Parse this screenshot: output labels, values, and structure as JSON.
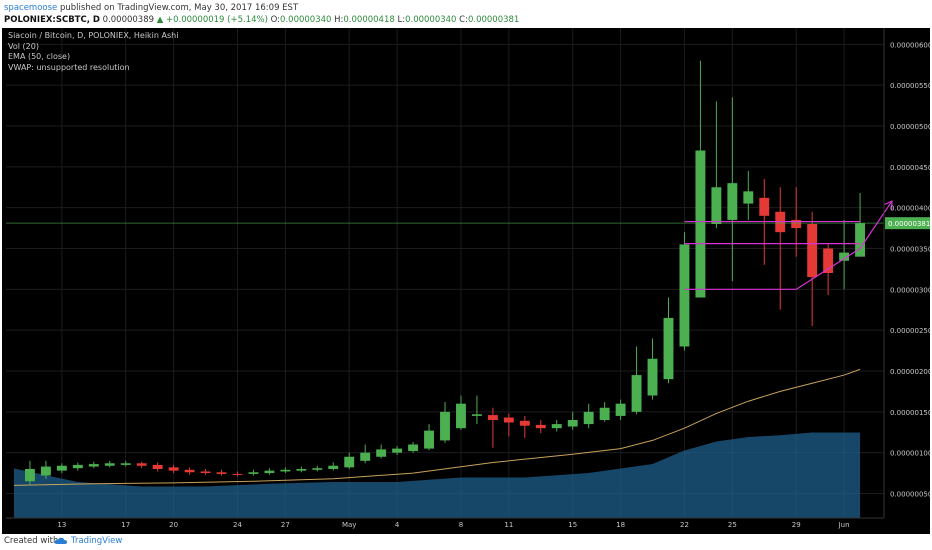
{
  "header": {
    "author": "spacemoose",
    "published": "published on TradingView.com, May 30, 2017 16:09 EST",
    "symbol": "POLONIEX:SCBTC, D",
    "last": "0.00000389",
    "change": "▲ +0.00000019 (+5.14%)",
    "o_label": "O:",
    "o_value": "0.00000340",
    "h_label": "H:",
    "h_value": "0.00000418",
    "l_label": "L:",
    "l_value": "0.00000340",
    "c_label": "C:",
    "c_value": "0.00000381"
  },
  "legend": {
    "title": "Siacoin / Bitcoin, D, POLONIEX, Heikin Ashi",
    "vol": "Vol (20)",
    "ema": "EMA (50, close)",
    "vwap": "VWAP: unsupported resolution"
  },
  "footer": {
    "created_with": "Created with",
    "brand": "TradingView"
  },
  "colors": {
    "bull": "#4caf50",
    "bear": "#e53935",
    "ema": "#c8a25a",
    "volume": "#1e5f8c",
    "annotation": "#d633d6",
    "price_tag": "#4caf50"
  },
  "chart_data": {
    "type": "candlestick",
    "title": "Siacoin / Bitcoin, D, POLONIEX, Heikin Ashi",
    "price_label": "0.00000381",
    "ylim": [
      2e-07,
      6.2e-06
    ],
    "y_ticks": [
      "0.00000600",
      "0.00000550",
      "0.00000500",
      "0.00000450",
      "0.00000400",
      "0.00000350",
      "0.00000300",
      "0.00000250",
      "0.00000200",
      "0.00000150",
      "0.00000100",
      "0.00000050"
    ],
    "x_ticks": [
      {
        "label": "13",
        "x": 13
      },
      {
        "label": "17",
        "x": 17
      },
      {
        "label": "20",
        "x": 20
      },
      {
        "label": "24",
        "x": 24
      },
      {
        "label": "27",
        "x": 27
      },
      {
        "label": "May",
        "x": 31
      },
      {
        "label": "4",
        "x": 34
      },
      {
        "label": "8",
        "x": 38
      },
      {
        "label": "11",
        "x": 41
      },
      {
        "label": "15",
        "x": 45
      },
      {
        "label": "18",
        "x": 48
      },
      {
        "label": "22",
        "x": 52
      },
      {
        "label": "25",
        "x": 55
      },
      {
        "label": "29",
        "x": 59
      },
      {
        "label": "Jun",
        "x": 62
      }
    ],
    "candles": [
      {
        "x": 11,
        "o": 6.5e-07,
        "c": 8e-07,
        "h": 9e-07,
        "l": 6e-07
      },
      {
        "x": 12,
        "o": 7.2e-07,
        "c": 8.3e-07,
        "h": 9e-07,
        "l": 6.8e-07
      },
      {
        "x": 13,
        "o": 7.8e-07,
        "c": 8.4e-07,
        "h": 8.7e-07,
        "l": 7.5e-07
      },
      {
        "x": 14,
        "o": 8.1e-07,
        "c": 8.5e-07,
        "h": 8.8e-07,
        "l": 7.8e-07
      },
      {
        "x": 15,
        "o": 8.3e-07,
        "c": 8.6e-07,
        "h": 8.9e-07,
        "l": 8.1e-07
      },
      {
        "x": 16,
        "o": 8.4e-07,
        "c": 8.7e-07,
        "h": 9e-07,
        "l": 8.2e-07
      },
      {
        "x": 17,
        "o": 8.5e-07,
        "c": 8.7e-07,
        "h": 9e-07,
        "l": 8.3e-07
      },
      {
        "x": 18,
        "o": 8.7e-07,
        "c": 8.4e-07,
        "h": 8.9e-07,
        "l": 8.1e-07
      },
      {
        "x": 19,
        "o": 8.5e-07,
        "c": 8e-07,
        "h": 8.8e-07,
        "l": 7.7e-07
      },
      {
        "x": 20,
        "o": 8.2e-07,
        "c": 7.8e-07,
        "h": 8.5e-07,
        "l": 7.5e-07
      },
      {
        "x": 21,
        "o": 7.9e-07,
        "c": 7.6e-07,
        "h": 8.2e-07,
        "l": 7.3e-07
      },
      {
        "x": 22,
        "o": 7.7e-07,
        "c": 7.5e-07,
        "h": 8e-07,
        "l": 7.3e-07
      },
      {
        "x": 23,
        "o": 7.6e-07,
        "c": 7.4e-07,
        "h": 7.9e-07,
        "l": 7.2e-07
      },
      {
        "x": 24,
        "o": 7.4e-07,
        "c": 7.3e-07,
        "h": 7.7e-07,
        "l": 7.1e-07
      },
      {
        "x": 25,
        "o": 7.4e-07,
        "c": 7.6e-07,
        "h": 7.9e-07,
        "l": 7.2e-07
      },
      {
        "x": 26,
        "o": 7.5e-07,
        "c": 7.8e-07,
        "h": 8.1e-07,
        "l": 7.3e-07
      },
      {
        "x": 27,
        "o": 7.7e-07,
        "c": 7.9e-07,
        "h": 8.2e-07,
        "l": 7.5e-07
      },
      {
        "x": 28,
        "o": 7.8e-07,
        "c": 8e-07,
        "h": 8.3e-07,
        "l": 7.6e-07
      },
      {
        "x": 29,
        "o": 7.9e-07,
        "c": 8.1e-07,
        "h": 8.4e-07,
        "l": 7.7e-07
      },
      {
        "x": 30,
        "o": 8e-07,
        "c": 8.4e-07,
        "h": 8.8e-07,
        "l": 7.8e-07
      },
      {
        "x": 31,
        "o": 8.2e-07,
        "c": 9.5e-07,
        "h": 1e-06,
        "l": 8e-07
      },
      {
        "x": 32,
        "o": 9e-07,
        "c": 1e-06,
        "h": 1.1e-06,
        "l": 8.7e-07
      },
      {
        "x": 33,
        "o": 9.5e-07,
        "c": 1.04e-06,
        "h": 1.1e-06,
        "l": 9.3e-07
      },
      {
        "x": 34,
        "o": 1e-06,
        "c": 1.05e-06,
        "h": 1.08e-06,
        "l": 9.7e-07
      },
      {
        "x": 35,
        "o": 1.02e-06,
        "c": 1.1e-06,
        "h": 1.13e-06,
        "l": 1e-06
      },
      {
        "x": 36,
        "o": 1.05e-06,
        "c": 1.27e-06,
        "h": 1.35e-06,
        "l": 1.03e-06
      },
      {
        "x": 37,
        "o": 1.15e-06,
        "c": 1.5e-06,
        "h": 1.62e-06,
        "l": 1.12e-06
      },
      {
        "x": 38,
        "o": 1.3e-06,
        "c": 1.6e-06,
        "h": 1.7e-06,
        "l": 1.28e-06
      },
      {
        "x": 39,
        "o": 1.45e-06,
        "c": 1.47e-06,
        "h": 1.7e-06,
        "l": 1.35e-06
      },
      {
        "x": 40,
        "o": 1.46e-06,
        "c": 1.4e-06,
        "h": 1.55e-06,
        "l": 1.06e-06
      },
      {
        "x": 41,
        "o": 1.43e-06,
        "c": 1.37e-06,
        "h": 1.48e-06,
        "l": 1.2e-06
      },
      {
        "x": 42,
        "o": 1.39e-06,
        "c": 1.33e-06,
        "h": 1.45e-06,
        "l": 1.18e-06
      },
      {
        "x": 43,
        "o": 1.34e-06,
        "c": 1.3e-06,
        "h": 1.4e-06,
        "l": 1.24e-06
      },
      {
        "x": 44,
        "o": 1.3e-06,
        "c": 1.35e-06,
        "h": 1.4e-06,
        "l": 1.26e-06
      },
      {
        "x": 45,
        "o": 1.32e-06,
        "c": 1.4e-06,
        "h": 1.5e-06,
        "l": 1.28e-06
      },
      {
        "x": 46,
        "o": 1.35e-06,
        "c": 1.5e-06,
        "h": 1.6e-06,
        "l": 1.3e-06
      },
      {
        "x": 47,
        "o": 1.4e-06,
        "c": 1.55e-06,
        "h": 1.62e-06,
        "l": 1.38e-06
      },
      {
        "x": 48,
        "o": 1.45e-06,
        "c": 1.6e-06,
        "h": 1.65e-06,
        "l": 1.4e-06
      },
      {
        "x": 49,
        "o": 1.5e-06,
        "c": 1.95e-06,
        "h": 2.3e-06,
        "l": 1.47e-06
      },
      {
        "x": 50,
        "o": 1.7e-06,
        "c": 2.15e-06,
        "h": 2.4e-06,
        "l": 1.65e-06
      },
      {
        "x": 51,
        "o": 1.9e-06,
        "c": 2.65e-06,
        "h": 2.9e-06,
        "l": 1.85e-06
      },
      {
        "x": 52,
        "o": 2.3e-06,
        "c": 3.55e-06,
        "h": 3.7e-06,
        "l": 2.25e-06
      },
      {
        "x": 53,
        "o": 2.9e-06,
        "c": 4.7e-06,
        "h": 5.8e-06,
        "l": 2.9e-06
      },
      {
        "x": 54,
        "o": 3.8e-06,
        "c": 4.25e-06,
        "h": 5.3e-06,
        "l": 3.75e-06
      },
      {
        "x": 55,
        "o": 3.85e-06,
        "c": 4.3e-06,
        "h": 5.35e-06,
        "l": 3.1e-06
      },
      {
        "x": 56,
        "o": 4.05e-06,
        "c": 4.2e-06,
        "h": 4.45e-06,
        "l": 3.85e-06
      },
      {
        "x": 57,
        "o": 4.12e-06,
        "c": 3.9e-06,
        "h": 4.35e-06,
        "l": 3.3e-06
      },
      {
        "x": 58,
        "o": 3.95e-06,
        "c": 3.7e-06,
        "h": 4.25e-06,
        "l": 2.75e-06
      },
      {
        "x": 59,
        "o": 3.85e-06,
        "c": 3.75e-06,
        "h": 4.25e-06,
        "l": 3.4e-06
      },
      {
        "x": 60,
        "o": 3.8e-06,
        "c": 3.15e-06,
        "h": 3.95e-06,
        "l": 2.55e-06
      },
      {
        "x": 61,
        "o": 3.5e-06,
        "c": 3.2e-06,
        "h": 3.55e-06,
        "l": 2.93e-06
      },
      {
        "x": 62,
        "o": 3.35e-06,
        "c": 3.45e-06,
        "h": 3.85e-06,
        "l": 3e-06
      },
      {
        "x": 63,
        "o": 3.4e-06,
        "c": 3.81e-06,
        "h": 4.18e-06,
        "l": 3.4e-06
      }
    ],
    "ema": [
      {
        "x": 10,
        "y": 6e-07
      },
      {
        "x": 15,
        "y": 6.2e-07
      },
      {
        "x": 20,
        "y": 6.3e-07
      },
      {
        "x": 25,
        "y": 6.5e-07
      },
      {
        "x": 30,
        "y": 6.8e-07
      },
      {
        "x": 35,
        "y": 7.5e-07
      },
      {
        "x": 40,
        "y": 8.8e-07
      },
      {
        "x": 45,
        "y": 9.8e-07
      },
      {
        "x": 48,
        "y": 1.05e-06
      },
      {
        "x": 50,
        "y": 1.15e-06
      },
      {
        "x": 52,
        "y": 1.3e-06
      },
      {
        "x": 54,
        "y": 1.48e-06
      },
      {
        "x": 56,
        "y": 1.63e-06
      },
      {
        "x": 58,
        "y": 1.75e-06
      },
      {
        "x": 60,
        "y": 1.85e-06
      },
      {
        "x": 62,
        "y": 1.95e-06
      },
      {
        "x": 63,
        "y": 2.02e-06
      }
    ],
    "volume": [
      {
        "x": 10,
        "v": 0.55
      },
      {
        "x": 14,
        "v": 0.4
      },
      {
        "x": 18,
        "v": 0.35
      },
      {
        "x": 22,
        "v": 0.35
      },
      {
        "x": 26,
        "v": 0.38
      },
      {
        "x": 30,
        "v": 0.4
      },
      {
        "x": 34,
        "v": 0.4
      },
      {
        "x": 38,
        "v": 0.45
      },
      {
        "x": 42,
        "v": 0.45
      },
      {
        "x": 46,
        "v": 0.5
      },
      {
        "x": 50,
        "v": 0.6
      },
      {
        "x": 52,
        "v": 0.75
      },
      {
        "x": 54,
        "v": 0.85
      },
      {
        "x": 56,
        "v": 0.9
      },
      {
        "x": 58,
        "v": 0.92
      },
      {
        "x": 60,
        "v": 0.95
      },
      {
        "x": 63,
        "v": 0.95
      }
    ],
    "annotations": {
      "hlines": [
        {
          "y": 3.83e-06,
          "x1": 52,
          "x2": 63
        },
        {
          "y": 3.56e-06,
          "x1": 52,
          "x2": 63
        },
        {
          "y": 3e-06,
          "x1": 52,
          "x2": 59
        }
      ],
      "arrow": [
        {
          "x": 59,
          "y": 3e-06
        },
        {
          "x": 63,
          "y": 3.5e-06
        },
        {
          "x": 65,
          "y": 4.08e-06
        }
      ]
    }
  }
}
